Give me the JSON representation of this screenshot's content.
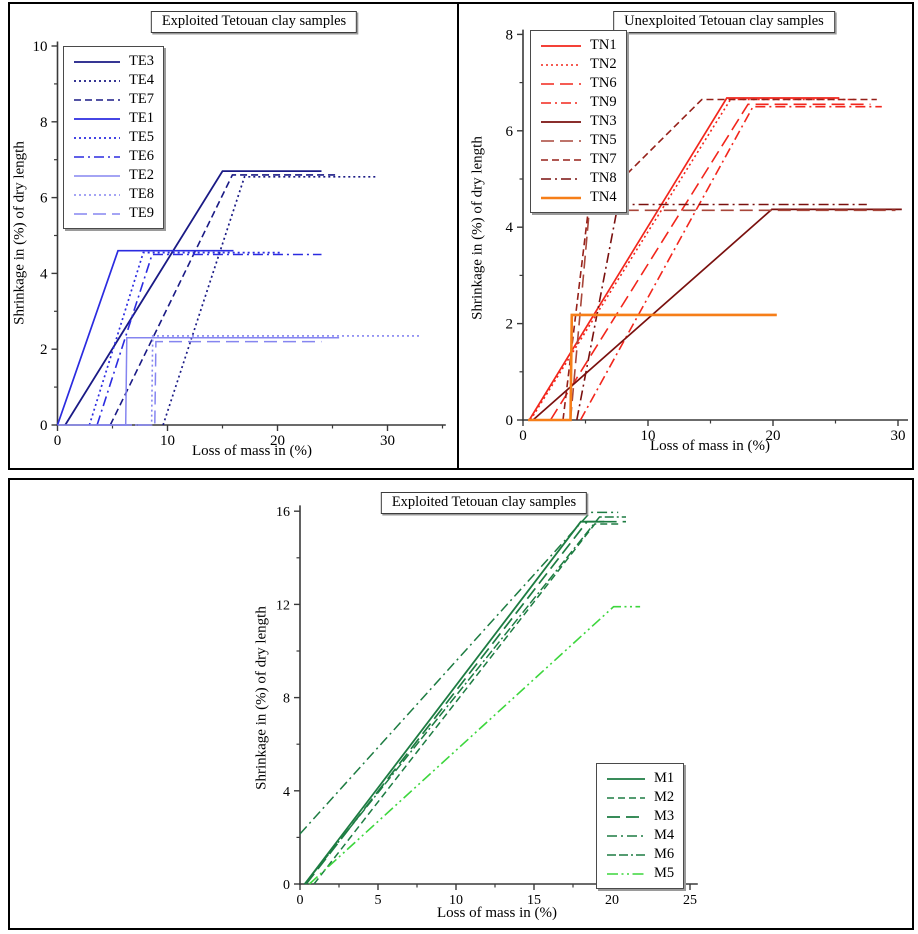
{
  "figure": {
    "background": "#ffffff",
    "frame_color": "#000000"
  },
  "chart_data": [
    {
      "type": "line",
      "title": "Exploited Tetouan clay samples",
      "xlabel": "Loss of mass in (%)",
      "ylabel": "Shrinkage in (%) of dry length",
      "xlim": [
        0,
        35
      ],
      "ylim": [
        0,
        10
      ],
      "x_major_ticks": [
        0,
        10,
        20,
        30
      ],
      "x_minor_ticks": [
        5,
        15,
        25,
        35
      ],
      "y_major_ticks": [
        0,
        2,
        4,
        6,
        8,
        10
      ],
      "y_minor_ticks": [
        1,
        3,
        5,
        7,
        9
      ],
      "grid": false,
      "legend_position": "top-left",
      "series": [
        {
          "name": "TE3",
          "color": "#1a1a85",
          "style": "solid",
          "width": 1.8,
          "points": [
            [
              0.7,
              0
            ],
            [
              15,
              6.7
            ],
            [
              24,
              6.7
            ]
          ]
        },
        {
          "name": "TE4",
          "color": "#1a1a85",
          "style": "dot",
          "width": 1.7,
          "points": [
            [
              9.6,
              0
            ],
            [
              17,
              6.55
            ],
            [
              29,
              6.55
            ]
          ]
        },
        {
          "name": "TE7",
          "color": "#1a1a85",
          "style": "dash",
          "width": 1.6,
          "points": [
            [
              4.8,
              0
            ],
            [
              15.9,
              6.6
            ],
            [
              25.5,
              6.6
            ]
          ]
        },
        {
          "name": "TE1",
          "color": "#2b2be0",
          "style": "solid",
          "width": 1.7,
          "points": [
            [
              0,
              0
            ],
            [
              5.5,
              4.6
            ],
            [
              16,
              4.6
            ]
          ]
        },
        {
          "name": "TE5",
          "color": "#2b2be0",
          "style": "dot",
          "width": 1.7,
          "points": [
            [
              2.9,
              0
            ],
            [
              7.8,
              4.55
            ],
            [
              20.3,
              4.55
            ]
          ]
        },
        {
          "name": "TE6",
          "color": "#2b2be0",
          "style": "dashdot",
          "width": 1.6,
          "points": [
            [
              3.6,
              0
            ],
            [
              8.6,
              4.5
            ],
            [
              24,
              4.5
            ]
          ]
        },
        {
          "name": "TE2",
          "color": "#8585f0",
          "style": "solid",
          "width": 1.5,
          "points": [
            [
              0,
              0
            ],
            [
              6.2,
              0
            ],
            [
              6.3,
              2.3
            ],
            [
              25.6,
              2.3
            ]
          ]
        },
        {
          "name": "TE8",
          "color": "#8585f0",
          "style": "dot",
          "width": 1.6,
          "points": [
            [
              2.5,
              0
            ],
            [
              8.55,
              0
            ],
            [
              8.65,
              2.35
            ],
            [
              33,
              2.35
            ]
          ]
        },
        {
          "name": "TE9",
          "color": "#8585f0",
          "style": "longdash",
          "width": 1.5,
          "points": [
            [
              3.8,
              0
            ],
            [
              8.85,
              0
            ],
            [
              8.95,
              2.2
            ],
            [
              24,
              2.2
            ]
          ]
        }
      ]
    },
    {
      "type": "line",
      "title": "Unexploited Tetouan clay samples",
      "xlabel": "Loss of mass in (%)",
      "ylabel": "Shrinkage in (%) of dry length",
      "xlim": [
        0,
        30
      ],
      "ylim": [
        0,
        8
      ],
      "x_major_ticks": [
        0,
        10,
        20,
        30
      ],
      "x_minor_ticks": [
        5,
        15,
        25
      ],
      "y_major_ticks": [
        0,
        2,
        4,
        6,
        8
      ],
      "y_minor_ticks": [
        1,
        3,
        5,
        7
      ],
      "grid": false,
      "legend_position": "top-left",
      "series": [
        {
          "name": "TN1",
          "color": "#f2261c",
          "style": "solid",
          "width": 1.7,
          "points": [
            [
              0.5,
              0
            ],
            [
              16.3,
              6.68
            ],
            [
              25.3,
              6.68
            ]
          ]
        },
        {
          "name": "TN2",
          "color": "#f2261c",
          "style": "dot",
          "width": 1.6,
          "points": [
            [
              0.6,
              0
            ],
            [
              16.6,
              6.65
            ],
            [
              26.7,
              6.65
            ]
          ]
        },
        {
          "name": "TN6",
          "color": "#f2261c",
          "style": "longdash",
          "width": 1.6,
          "points": [
            [
              2.2,
              0
            ],
            [
              18,
              6.55
            ],
            [
              27.8,
              6.55
            ]
          ]
        },
        {
          "name": "TN9",
          "color": "#f2261c",
          "style": "dashdot",
          "width": 1.6,
          "points": [
            [
              4.6,
              0
            ],
            [
              18.4,
              6.5
            ],
            [
              28.7,
              6.5
            ]
          ]
        },
        {
          "name": "TN3",
          "color": "#7a100e",
          "style": "solid",
          "width": 1.7,
          "points": [
            [
              0.8,
              0
            ],
            [
              19.9,
              4.37
            ],
            [
              30.3,
              4.37
            ]
          ]
        },
        {
          "name": "TN5",
          "color": "#a8463a",
          "style": "longdash",
          "width": 1.6,
          "points": [
            [
              3.8,
              0
            ],
            [
              5.3,
              4.35
            ],
            [
              29.8,
              4.35
            ]
          ]
        },
        {
          "name": "TN7",
          "color": "#952019",
          "style": "dash",
          "width": 1.6,
          "points": [
            [
              3.2,
              0
            ],
            [
              5.2,
              4.3
            ],
            [
              14.3,
              6.65
            ],
            [
              28.3,
              6.65
            ]
          ]
        },
        {
          "name": "TN8",
          "color": "#7a100e",
          "style": "dashdot",
          "width": 1.6,
          "points": [
            [
              4.3,
              0
            ],
            [
              7.6,
              4.47
            ],
            [
              27.5,
              4.47
            ]
          ]
        },
        {
          "name": "TN4",
          "color": "#f67e18",
          "style": "solid",
          "width": 2.6,
          "points": [
            [
              0.4,
              0
            ],
            [
              3.8,
              0
            ],
            [
              3.9,
              2.18
            ],
            [
              20.3,
              2.18
            ]
          ]
        }
      ]
    },
    {
      "type": "line",
      "title": "Exploited Tetouan clay samples",
      "xlabel": "Loss of mass in (%)",
      "ylabel": "Shrinkage in (%) of dry length",
      "xlim": [
        0,
        25
      ],
      "ylim": [
        0,
        16
      ],
      "x_major_ticks": [
        0,
        5,
        10,
        15,
        20,
        25
      ],
      "x_minor_ticks": [
        2.5,
        7.5,
        12.5,
        17.5,
        22.5
      ],
      "y_major_ticks": [
        0,
        4,
        8,
        12,
        16
      ],
      "y_minor_ticks": [
        2,
        6,
        10,
        14
      ],
      "grid": false,
      "legend_position": "bottom-right",
      "series": [
        {
          "name": "M1",
          "color": "#1d7c42",
          "style": "solid",
          "width": 1.8,
          "points": [
            [
              0.3,
              0
            ],
            [
              18,
              15.55
            ],
            [
              19.5,
              15.55
            ]
          ]
        },
        {
          "name": "M2",
          "color": "#1d7c42",
          "style": "dash",
          "width": 1.5,
          "points": [
            [
              0.9,
              0
            ],
            [
              18.9,
              15.45
            ],
            [
              20.4,
              15.45
            ]
          ]
        },
        {
          "name": "M3",
          "color": "#1d7c42",
          "style": "longdash",
          "width": 1.7,
          "points": [
            [
              0.4,
              0
            ],
            [
              18.4,
              15.55
            ],
            [
              20.9,
              15.55
            ]
          ]
        },
        {
          "name": "M4",
          "color": "#1d7c42",
          "style": "dashdot",
          "width": 1.5,
          "points": [
            [
              0,
              2.15
            ],
            [
              18.6,
              15.95
            ],
            [
              20.4,
              15.95
            ]
          ]
        },
        {
          "name": "M6",
          "color": "#1d7c42",
          "style": "dashdashdot",
          "width": 1.5,
          "points": [
            [
              0.3,
              0
            ],
            [
              19.2,
              15.75
            ],
            [
              20.9,
              15.75
            ]
          ]
        },
        {
          "name": "M5",
          "color": "#3cd63c",
          "style": "dashdotdot",
          "width": 1.6,
          "points": [
            [
              0.6,
              0
            ],
            [
              20.1,
              11.9
            ],
            [
              21.8,
              11.9
            ]
          ]
        }
      ]
    }
  ]
}
